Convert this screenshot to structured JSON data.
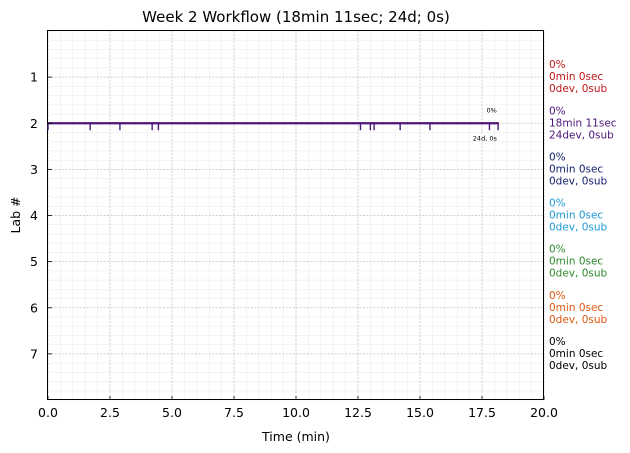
{
  "chart_data": {
    "type": "timeline",
    "title": "Week 2 Workflow (18min 11sec; 24d; 0s)",
    "xlabel": "Time (min)",
    "ylabel": "Lab #",
    "xlim": [
      0,
      20
    ],
    "ylim": [
      8,
      0
    ],
    "x_ticks": [
      "0.0",
      "2.5",
      "5.0",
      "7.5",
      "10.0",
      "12.5",
      "15.0",
      "17.5",
      "20.0"
    ],
    "x_tick_values": [
      0,
      2.5,
      5,
      7.5,
      10,
      12.5,
      15,
      17.5,
      20
    ],
    "y_ticks": [
      "1",
      "2",
      "3",
      "4",
      "5",
      "6",
      "7"
    ],
    "y_tick_values": [
      1,
      2,
      3,
      4,
      5,
      6,
      7
    ],
    "grid": true,
    "labs": [
      {
        "lab": 1,
        "pct": "0%",
        "time": "0min 0sec",
        "counts": "0dev, 0sub",
        "color": "#c0171a"
      },
      {
        "lab": 2,
        "pct": "0%",
        "time": "18min 11sec",
        "counts": "24dev, 0sub",
        "color": "#4b1678"
      },
      {
        "lab": 3,
        "pct": "0%",
        "time": "0min 0sec",
        "counts": "0dev, 0sub",
        "color": "#16216e"
      },
      {
        "lab": 4,
        "pct": "0%",
        "time": "0min 0sec",
        "counts": "0dev, 0sub",
        "color": "#1c9ad6"
      },
      {
        "lab": 5,
        "pct": "0%",
        "time": "0min 0sec",
        "counts": "0dev, 0sub",
        "color": "#2e8b2e"
      },
      {
        "lab": 6,
        "pct": "0%",
        "time": "0min 0sec",
        "counts": "0dev, 0sub",
        "color": "#e0580f"
      },
      {
        "lab": 7,
        "pct": "0%",
        "time": "0min 0sec",
        "counts": "0dev, 0sub",
        "color": "#000000"
      }
    ],
    "series": [
      {
        "lab": 2,
        "start": 0,
        "end": 18.18,
        "color": "#4b1678",
        "event_times": [
          0.0,
          1.7,
          2.9,
          4.2,
          4.45,
          12.6,
          13.0,
          13.15,
          14.2,
          15.4,
          17.8,
          18.15
        ],
        "end_pct_label": "0%",
        "end_counts_label": "24d, 0s"
      }
    ]
  }
}
